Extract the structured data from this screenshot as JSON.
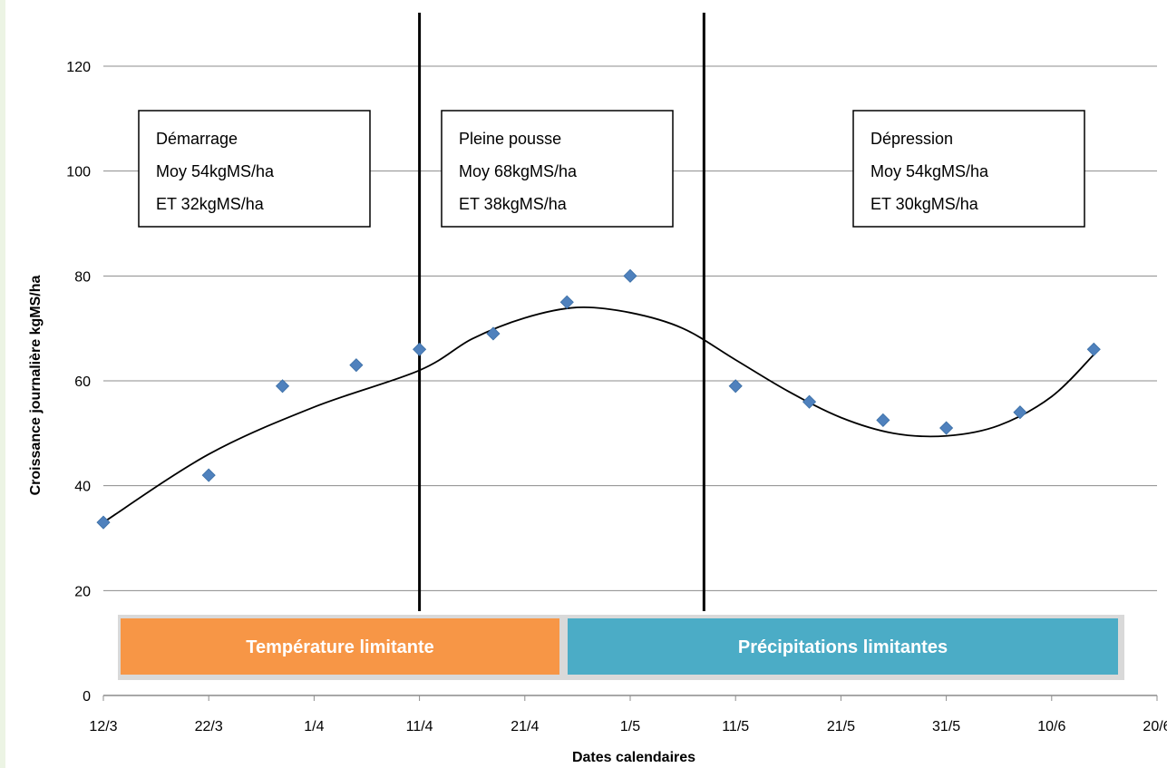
{
  "chart_data": {
    "type": "scatter",
    "title": "",
    "xlabel": "Dates calendaires",
    "ylabel": "Croissance journalière  kgMS/ha",
    "xlim": [
      "12/3",
      "20/6"
    ],
    "ylim": [
      0,
      120
    ],
    "x_ticks": [
      "12/3",
      "22/3",
      "1/4",
      "11/4",
      "21/4",
      "1/5",
      "11/5",
      "21/5",
      "31/5",
      "10/6",
      "20/6"
    ],
    "y_ticks": [
      0,
      20,
      40,
      60,
      80,
      100,
      120
    ],
    "grid": true,
    "series": [
      {
        "marker": "diamond",
        "color": "#4f81bd",
        "points": [
          {
            "x": "12/3",
            "y": 33
          },
          {
            "x": "22/3",
            "y": 42
          },
          {
            "x": "29/3",
            "y": 59
          },
          {
            "x": "5/4",
            "y": 63
          },
          {
            "x": "11/4",
            "y": 66
          },
          {
            "x": "18/4",
            "y": 69
          },
          {
            "x": "25/4",
            "y": 75
          },
          {
            "x": "1/5",
            "y": 80
          },
          {
            "x": "11/5",
            "y": 59
          },
          {
            "x": "18/5",
            "y": 56
          },
          {
            "x": "25/5",
            "y": 52.5
          },
          {
            "x": "31/5",
            "y": 51
          },
          {
            "x": "7/6",
            "y": 54
          },
          {
            "x": "14/6",
            "y": 66
          }
        ]
      }
    ],
    "trendline": {
      "type": "polynomial",
      "color": "#000000",
      "points": [
        {
          "x": "12/3",
          "y": 33
        },
        {
          "x": "22/3",
          "y": 46
        },
        {
          "x": "1/4",
          "y": 55
        },
        {
          "x": "11/4",
          "y": 62
        },
        {
          "x": "16/4",
          "y": 68
        },
        {
          "x": "21/4",
          "y": 72
        },
        {
          "x": "26/4",
          "y": 74
        },
        {
          "x": "1/5",
          "y": 73
        },
        {
          "x": "6/5",
          "y": 70
        },
        {
          "x": "11/5",
          "y": 64
        },
        {
          "x": "16/5",
          "y": 58
        },
        {
          "x": "21/5",
          "y": 53
        },
        {
          "x": "26/5",
          "y": 50
        },
        {
          "x": "31/5",
          "y": 49.5
        },
        {
          "x": "5/6",
          "y": 51.5
        },
        {
          "x": "10/6",
          "y": 57
        },
        {
          "x": "14/6",
          "y": 65
        }
      ]
    },
    "phase_dividers": [
      "11/4",
      "8/5"
    ],
    "phases": [
      {
        "name": "Démarrage",
        "mean": "Moy 54kgMS/ha",
        "sd": "ET 32kgMS/ha"
      },
      {
        "name": "Pleine pousse",
        "mean": "Moy 68kgMS/ha",
        "sd": "ET 38kgMS/ha"
      },
      {
        "name": "Dépression",
        "mean": "Moy 54kgMS/ha",
        "sd": "ET 30kgMS/ha"
      }
    ],
    "limiting_factors": [
      {
        "label": "Température limitante",
        "from": "12/3",
        "to": "24/4",
        "color": "#f79646"
      },
      {
        "label": "Précipitations limitantes",
        "from": "24/4",
        "to": "18/6",
        "color": "#4bacc6"
      }
    ]
  }
}
